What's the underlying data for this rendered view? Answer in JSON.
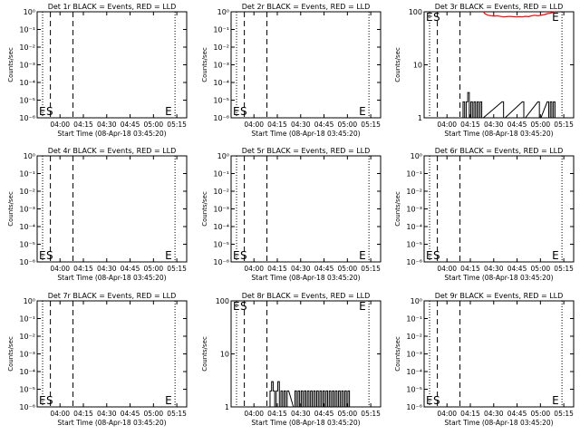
{
  "page": {
    "xlabel": "Start Time (08-Apr-18 03:45:20)",
    "ylabel": "Counts/sec",
    "x_ticks": [
      "04:00",
      "04:15",
      "04:30",
      "04:45",
      "05:00",
      "05:15"
    ],
    "marker_s": "S",
    "marker_e": "E",
    "colors": {
      "events": "#000000",
      "lld": "#ff0000"
    }
  },
  "chart_data": [
    {
      "type": "line",
      "title": "Det 1r BLACK = Events, RED = LLD",
      "y_scale": "log",
      "ylim": [
        1,
        1e-06
      ],
      "y_ticks": [
        "10⁻⁶",
        "10⁻⁵",
        "10⁻⁴",
        "10⁻³",
        "10⁻²",
        "10⁻¹",
        "10⁰"
      ],
      "x_range_min": [
        0,
        96
      ],
      "dotted_lines_min": [
        3.5,
        88.5
      ],
      "dashed_lines_min": [
        8.5,
        23
      ],
      "events": [],
      "lld": []
    },
    {
      "type": "line",
      "title": "Det 2r BLACK = Events, RED = LLD",
      "y_scale": "log",
      "ylim": [
        1,
        1e-06
      ],
      "y_ticks": [
        "10⁻⁶",
        "10⁻⁵",
        "10⁻⁴",
        "10⁻³",
        "10⁻²",
        "10⁻¹",
        "10⁰"
      ],
      "x_range_min": [
        0,
        96
      ],
      "dotted_lines_min": [
        3.5,
        88.5
      ],
      "dashed_lines_min": [
        8.5,
        23
      ],
      "events": [],
      "lld": []
    },
    {
      "type": "line",
      "title": "Det 3r BLACK = Events, RED = LLD",
      "y_scale": "log",
      "ylim": [
        1,
        100
      ],
      "y_ticks": [
        "1",
        "10",
        "100"
      ],
      "x_range_min": [
        0,
        96
      ],
      "dotted_lines_min": [
        3.5,
        88.5
      ],
      "dashed_lines_min": [
        8.5,
        23
      ],
      "events": [
        [
          24,
          1
        ],
        [
          25,
          2
        ],
        [
          26,
          1
        ],
        [
          27,
          2
        ],
        [
          28,
          3
        ],
        [
          29,
          1
        ],
        [
          30,
          2
        ],
        [
          31,
          1
        ],
        [
          32,
          2
        ],
        [
          33,
          1
        ],
        [
          34,
          2
        ],
        [
          35,
          1
        ],
        [
          36,
          2
        ],
        [
          37,
          1
        ],
        [
          50,
          2
        ],
        [
          51,
          1
        ],
        [
          63,
          2
        ],
        [
          64,
          1
        ],
        [
          73,
          2
        ],
        [
          74,
          1
        ],
        [
          79,
          2
        ],
        [
          80,
          1
        ],
        [
          81,
          2
        ],
        [
          82,
          1
        ],
        [
          83,
          2
        ]
      ],
      "lld": [
        [
          38,
          100
        ],
        [
          39,
          92
        ],
        [
          41,
          86
        ],
        [
          43,
          84
        ],
        [
          45,
          83
        ],
        [
          47,
          84
        ],
        [
          49,
          82
        ],
        [
          51,
          80
        ],
        [
          53,
          81
        ],
        [
          55,
          82
        ],
        [
          57,
          81
        ],
        [
          59,
          80
        ],
        [
          61,
          81
        ],
        [
          63,
          80
        ],
        [
          65,
          82
        ],
        [
          67,
          81
        ],
        [
          69,
          84
        ],
        [
          71,
          86
        ],
        [
          73,
          84
        ],
        [
          75,
          86
        ],
        [
          77,
          88
        ],
        [
          79,
          92
        ],
        [
          81,
          94
        ],
        [
          83,
          98
        ],
        [
          84,
          100
        ]
      ]
    },
    {
      "type": "line",
      "title": "Det 4r BLACK = Events, RED = LLD",
      "y_scale": "log",
      "ylim": [
        1,
        1e-06
      ],
      "y_ticks": [
        "10⁻⁶",
        "10⁻⁵",
        "10⁻⁴",
        "10⁻³",
        "10⁻²",
        "10⁻¹",
        "10⁰"
      ],
      "x_range_min": [
        0,
        96
      ],
      "dotted_lines_min": [
        3.5,
        88.5
      ],
      "dashed_lines_min": [
        8.5,
        23
      ],
      "events": [],
      "lld": []
    },
    {
      "type": "line",
      "title": "Det 5r BLACK = Events, RED = LLD",
      "y_scale": "log",
      "ylim": [
        1,
        1e-06
      ],
      "y_ticks": [
        "10⁻⁶",
        "10⁻⁵",
        "10⁻⁴",
        "10⁻³",
        "10⁻²",
        "10⁻¹",
        "10⁰"
      ],
      "x_range_min": [
        0,
        96
      ],
      "dotted_lines_min": [
        3.5,
        88.5
      ],
      "dashed_lines_min": [
        8.5,
        23
      ],
      "events": [],
      "lld": []
    },
    {
      "type": "line",
      "title": "Det 6r BLACK = Events, RED = LLD",
      "y_scale": "log",
      "ylim": [
        1,
        1e-06
      ],
      "y_ticks": [
        "10⁻⁶",
        "10⁻⁵",
        "10⁻⁴",
        "10⁻³",
        "10⁻²",
        "10⁻¹",
        "10⁰"
      ],
      "x_range_min": [
        0,
        96
      ],
      "dotted_lines_min": [
        3.5,
        88.5
      ],
      "dashed_lines_min": [
        8.5,
        23
      ],
      "events": [],
      "lld": []
    },
    {
      "type": "line",
      "title": "Det 7r BLACK = Events, RED = LLD",
      "y_scale": "log",
      "ylim": [
        1,
        1e-06
      ],
      "y_ticks": [
        "10⁻⁶",
        "10⁻⁵",
        "10⁻⁴",
        "10⁻³",
        "10⁻²",
        "10⁻¹",
        "10⁰"
      ],
      "x_range_min": [
        0,
        96
      ],
      "dotted_lines_min": [
        3.5,
        88.5
      ],
      "dashed_lines_min": [
        8.5,
        23
      ],
      "events": [],
      "lld": []
    },
    {
      "type": "line",
      "title": "Det 8r BLACK = Events, RED = LLD",
      "y_scale": "log",
      "ylim": [
        1,
        100
      ],
      "y_ticks": [
        "1",
        "10",
        "100"
      ],
      "x_range_min": [
        0,
        96
      ],
      "dotted_lines_min": [
        3.5,
        88.5
      ],
      "dashed_lines_min": [
        8.5,
        23
      ],
      "events": [
        [
          24,
          1
        ],
        [
          25,
          2
        ],
        [
          26,
          3
        ],
        [
          27,
          2
        ],
        [
          28,
          1
        ],
        [
          29,
          2
        ],
        [
          30,
          3
        ],
        [
          31,
          1
        ],
        [
          32,
          2
        ],
        [
          33,
          1
        ],
        [
          34,
          2
        ],
        [
          35,
          1
        ],
        [
          36,
          2
        ],
        [
          40,
          1
        ],
        [
          41,
          2
        ],
        [
          42,
          1
        ],
        [
          43,
          2
        ],
        [
          44,
          1
        ],
        [
          45,
          2
        ],
        [
          46,
          1
        ],
        [
          47,
          2
        ],
        [
          48,
          1
        ],
        [
          49,
          2
        ],
        [
          50,
          1
        ],
        [
          51,
          2
        ],
        [
          52,
          1
        ],
        [
          53,
          2
        ],
        [
          54,
          1
        ],
        [
          55,
          2
        ],
        [
          56,
          1
        ],
        [
          57,
          2
        ],
        [
          58,
          1
        ],
        [
          59,
          2
        ],
        [
          60,
          1
        ],
        [
          61,
          2
        ],
        [
          62,
          1
        ],
        [
          63,
          2
        ],
        [
          64,
          1
        ],
        [
          65,
          2
        ],
        [
          66,
          1
        ],
        [
          67,
          2
        ],
        [
          68,
          1
        ],
        [
          69,
          2
        ],
        [
          70,
          1
        ],
        [
          71,
          2
        ],
        [
          72,
          1
        ],
        [
          73,
          2
        ],
        [
          74,
          1
        ],
        [
          75,
          2
        ]
      ],
      "lld": []
    },
    {
      "type": "line",
      "title": "Det 9r BLACK = Events, RED = LLD",
      "y_scale": "log",
      "ylim": [
        1,
        1e-06
      ],
      "y_ticks": [
        "10⁻⁶",
        "10⁻⁵",
        "10⁻⁴",
        "10⁻³",
        "10⁻²",
        "10⁻¹",
        "10⁰"
      ],
      "x_range_min": [
        0,
        96
      ],
      "dotted_lines_min": [
        3.5,
        88.5
      ],
      "dashed_lines_min": [
        8.5,
        23
      ],
      "events": [],
      "lld": []
    }
  ]
}
